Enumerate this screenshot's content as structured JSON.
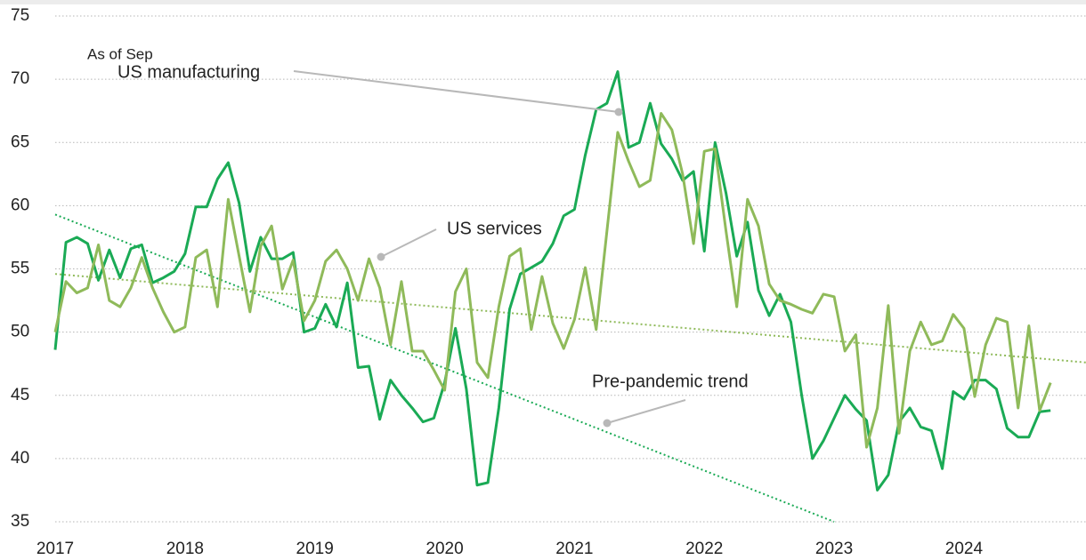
{
  "chart_data": {
    "type": "line",
    "xlim": [
      2017,
      2024.94
    ],
    "xticks": [
      2017,
      2018,
      2019,
      2020,
      2021,
      2022,
      2023,
      2024
    ],
    "ylim": [
      35,
      75
    ],
    "yticks": [
      35,
      40,
      45,
      50,
      55,
      60,
      65,
      70,
      75
    ],
    "grid": true,
    "x": [
      2017,
      2017.083,
      2017.167,
      2017.25,
      2017.333,
      2017.417,
      2017.5,
      2017.583,
      2017.667,
      2017.75,
      2017.833,
      2017.917,
      2018,
      2018.083,
      2018.167,
      2018.25,
      2018.333,
      2018.417,
      2018.5,
      2018.583,
      2018.667,
      2018.75,
      2018.833,
      2018.917,
      2019,
      2019.083,
      2019.167,
      2019.25,
      2019.333,
      2019.417,
      2019.5,
      2019.583,
      2019.667,
      2019.75,
      2019.833,
      2019.917,
      2020,
      2020.083,
      2020.167,
      2020.25,
      2020.333,
      2020.417,
      2020.5,
      2020.583,
      2020.667,
      2020.75,
      2020.833,
      2020.917,
      2021,
      2021.083,
      2021.167,
      2021.25,
      2021.333,
      2021.417,
      2021.5,
      2021.583,
      2021.667,
      2021.75,
      2021.833,
      2021.917,
      2022,
      2022.083,
      2022.167,
      2022.25,
      2022.333,
      2022.417,
      2022.5,
      2022.583,
      2022.667,
      2022.75,
      2022.833,
      2022.917,
      2023,
      2023.083,
      2023.167,
      2023.25,
      2023.333,
      2023.417,
      2023.5,
      2023.583,
      2023.667,
      2023.75,
      2023.833,
      2023.917,
      2024,
      2024.083,
      2024.167,
      2024.25,
      2024.333,
      2024.417,
      2024.5,
      2024.583,
      2024.667
    ],
    "series": [
      {
        "name": "US manufacturing",
        "color": "#1aaa55",
        "values": [
          48.6,
          57.1,
          57.5,
          57.0,
          54.1,
          56.5,
          54.3,
          56.6,
          56.9,
          53.9,
          54.3,
          54.8,
          56.2,
          59.9,
          59.9,
          62.1,
          63.4,
          60.2,
          54.8,
          57.5,
          55.8,
          55.8,
          56.3,
          50.0,
          50.3,
          52.2,
          50.4,
          53.9,
          47.2,
          47.3,
          43.1,
          46.2,
          45.0,
          44.0,
          42.9,
          43.2,
          46.0,
          50.3,
          45.5,
          37.9,
          38.1,
          44.0,
          51.8,
          54.6,
          55.1,
          55.6,
          57.0,
          59.2,
          59.7,
          64.0,
          67.6,
          68.1,
          70.6,
          64.6,
          65.0,
          68.1,
          64.9,
          63.7,
          62.0,
          62.7,
          56.4,
          65.0,
          61.0,
          56.0,
          58.7,
          53.3,
          51.3,
          53.0,
          50.8,
          45.0,
          40.0,
          41.4,
          43.2,
          45.0,
          43.9,
          43.0,
          37.5,
          38.7,
          42.9,
          44.0,
          42.5,
          42.2,
          39.2,
          45.3,
          44.7,
          46.2,
          46.2,
          45.5,
          42.4,
          41.7,
          41.7,
          43.7,
          43.8
        ]
      },
      {
        "name": "US services",
        "color": "#8fba5a",
        "values": [
          50.0,
          54.0,
          53.1,
          53.5,
          56.9,
          52.5,
          52.0,
          53.5,
          55.9,
          53.5,
          51.6,
          50.0,
          50.4,
          55.9,
          56.5,
          52.0,
          60.5,
          56.0,
          51.6,
          56.8,
          58.4,
          53.4,
          55.7,
          50.9,
          52.5,
          55.6,
          56.5,
          55.0,
          52.5,
          55.8,
          53.5,
          49.0,
          54.0,
          48.5,
          48.5,
          47.0,
          45.4,
          53.2,
          55.0,
          47.6,
          46.4,
          52.0,
          56.0,
          56.6,
          50.2,
          54.4,
          50.7,
          48.7,
          51.0,
          55.1,
          50.2,
          58.0,
          65.8,
          63.5,
          61.5,
          62.0,
          67.3,
          66.0,
          62.5,
          57.0,
          64.3,
          64.5,
          58.0,
          52.0,
          60.5,
          58.4,
          53.8,
          52.5,
          52.2,
          51.8,
          51.5,
          53.0,
          52.8,
          48.5,
          49.8,
          40.9,
          44.0,
          52.1,
          42.0,
          48.5,
          50.8,
          49.0,
          49.3,
          51.4,
          50.3,
          44.9,
          49.0,
          51.1,
          50.8,
          44.0,
          50.5,
          43.8,
          46.0
        ]
      }
    ],
    "trends": [
      {
        "color": "#1aaa55",
        "x": [
          2017,
          2023
        ],
        "values": [
          59.3,
          35.0
        ]
      },
      {
        "color": "#8fba5a",
        "x": [
          2017,
          2024.94
        ],
        "values": [
          54.6,
          47.6
        ]
      }
    ],
    "annotations": {
      "as_of": "As of Sep",
      "trend": "Pre-pandemic trend"
    }
  }
}
